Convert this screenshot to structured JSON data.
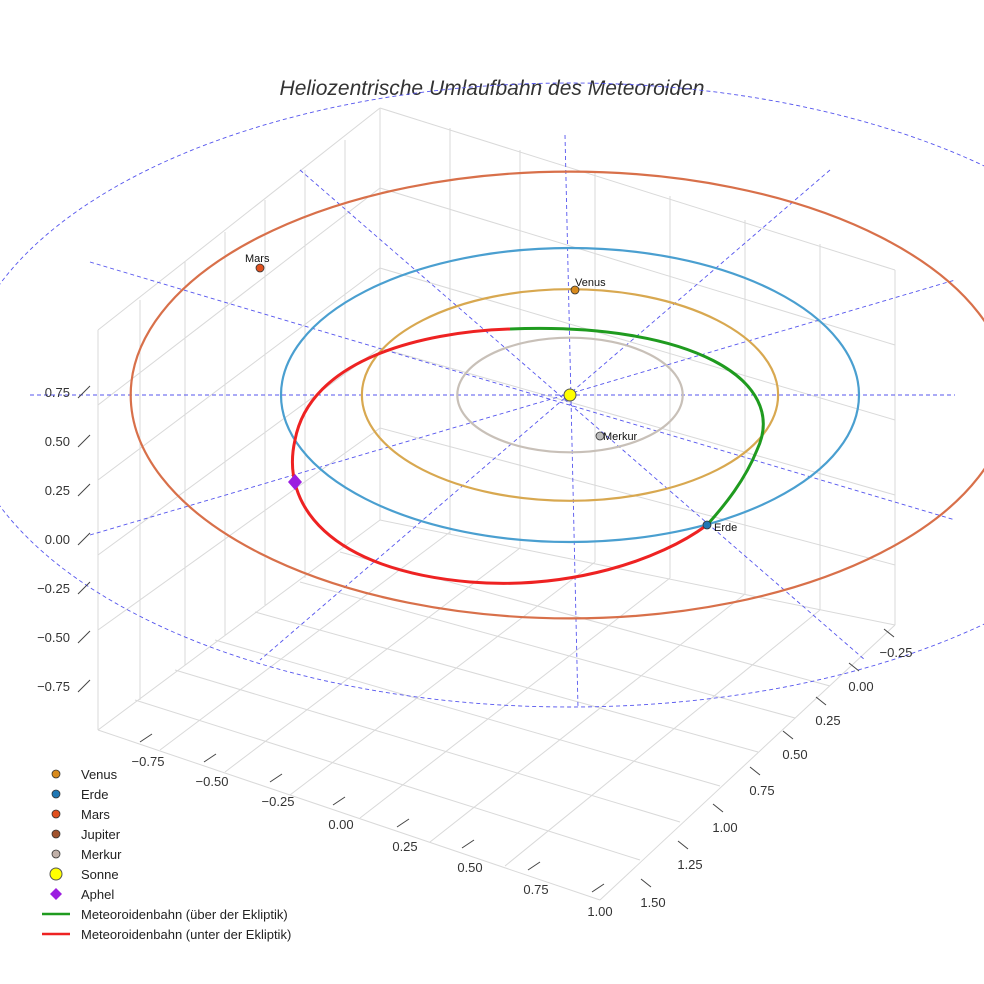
{
  "chart_data": {
    "type": "scatter3d",
    "title": "Heliozentrische Umlaufbahn des Meteoroiden",
    "z_ticks": [
      "0.75",
      "0.50",
      "0.25",
      "0.00",
      "−0.25",
      "−0.50",
      "−0.75"
    ],
    "x_ticks": [
      "−0.75",
      "−0.50",
      "−0.25",
      "0.00",
      "0.25",
      "0.50",
      "0.75",
      "1.00"
    ],
    "y_ticks": [
      "−0.25",
      "0.00",
      "0.25",
      "0.50",
      "0.75",
      "1.00",
      "1.25",
      "1.50"
    ],
    "orbits": [
      {
        "name": "Merkur",
        "radius_au": 0.39,
        "color": "#c8c0b8"
      },
      {
        "name": "Venus",
        "radius_au": 0.72,
        "color": "#d8a850"
      },
      {
        "name": "Erde",
        "radius_au": 1.0,
        "color": "#4a9fd0"
      },
      {
        "name": "Mars",
        "radius_au": 1.52,
        "color": "#d8704a"
      }
    ],
    "bodies": [
      {
        "name": "Venus",
        "label": "Venus",
        "color": "#d88a1c"
      },
      {
        "name": "Erde",
        "label": "Erde",
        "color": "#1f77b4"
      },
      {
        "name": "Mars",
        "label": "Mars",
        "color": "#e0501e"
      },
      {
        "name": "Merkur",
        "label": "Merkur",
        "color": "#bbbbbb"
      },
      {
        "name": "Sonne",
        "label": "",
        "color": "#ffff00"
      }
    ],
    "meteoroid_orbit": {
      "above_label": "Meteoroidenbahn (über der Ekliptik)",
      "below_label": "Meteoroidenbahn (unter der Ekliptik)",
      "above_color": "#1f9b1f",
      "below_color": "#ee2222"
    },
    "aphel": {
      "label": "Aphel",
      "color": "#9b1ee0"
    },
    "legend": [
      {
        "key": "venus",
        "label": "Venus",
        "marker": "circle",
        "color": "#d88a1c"
      },
      {
        "key": "erde",
        "label": "Erde",
        "marker": "circle",
        "color": "#1f77b4"
      },
      {
        "key": "mars",
        "label": "Mars",
        "marker": "circle",
        "color": "#e0501e"
      },
      {
        "key": "jupiter",
        "label": "Jupiter",
        "marker": "circle",
        "color": "#a0522d"
      },
      {
        "key": "merkur",
        "label": "Merkur",
        "marker": "circle",
        "color": "#c0b0a8"
      },
      {
        "key": "sonne",
        "label": "Sonne",
        "marker": "circle-large",
        "color": "#ffff00"
      },
      {
        "key": "aphel",
        "label": "Aphel",
        "marker": "diamond",
        "color": "#9b1ee0"
      },
      {
        "key": "above",
        "label": "Meteoroidenbahn (über der Ekliptik)",
        "marker": "line",
        "color": "#1f9b1f"
      },
      {
        "key": "below",
        "label": "Meteoroidenbahn (unter der Ekliptik)",
        "marker": "line",
        "color": "#ee2222"
      }
    ]
  }
}
